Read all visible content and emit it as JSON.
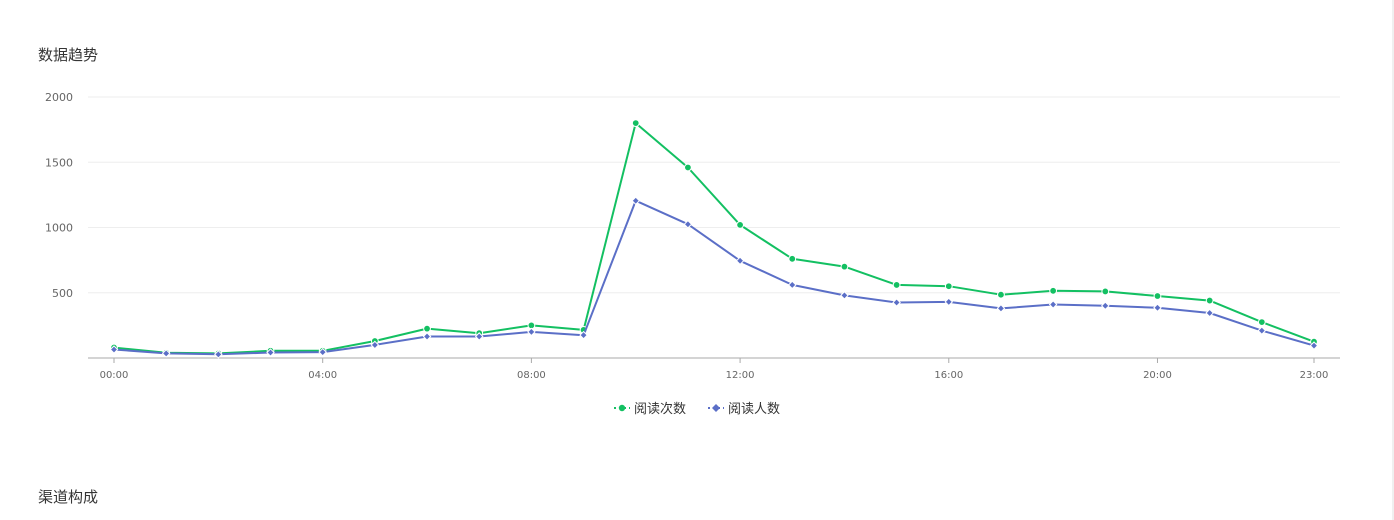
{
  "sections": {
    "trend_title": "数据趋势",
    "channel_title": "渠道构成"
  },
  "chart_data": {
    "type": "line",
    "title": "",
    "xlabel": "",
    "ylabel": "",
    "ylim": [
      0,
      2000
    ],
    "yticks": [
      500,
      1000,
      1500,
      2000
    ],
    "x": [
      "00:00",
      "01:00",
      "02:00",
      "03:00",
      "04:00",
      "05:00",
      "06:00",
      "07:00",
      "08:00",
      "09:00",
      "10:00",
      "11:00",
      "12:00",
      "13:00",
      "14:00",
      "15:00",
      "16:00",
      "17:00",
      "18:00",
      "19:00",
      "20:00",
      "21:00",
      "22:00",
      "23:00"
    ],
    "xtick_labels": [
      "00:00",
      "04:00",
      "08:00",
      "12:00",
      "16:00",
      "20:00",
      "23:00"
    ],
    "grid": true,
    "legend_position": "bottom",
    "series": [
      {
        "name": "阅读次数",
        "color": "#13c062",
        "marker": "circle",
        "values": [
          80,
          40,
          35,
          55,
          55,
          130,
          225,
          190,
          250,
          215,
          1800,
          1460,
          1020,
          760,
          700,
          560,
          550,
          485,
          515,
          510,
          475,
          440,
          275,
          125
        ]
      },
      {
        "name": "阅读人数",
        "color": "#5b6fc7",
        "marker": "diamond",
        "values": [
          65,
          35,
          28,
          42,
          45,
          100,
          165,
          165,
          200,
          175,
          1205,
          1025,
          745,
          560,
          480,
          425,
          430,
          380,
          410,
          400,
          385,
          345,
          210,
          95
        ]
      }
    ]
  }
}
